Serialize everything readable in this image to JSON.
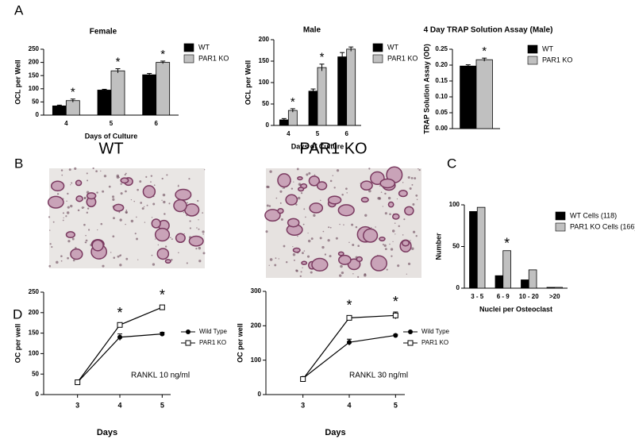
{
  "panel_labels": [
    "A",
    "B",
    "C",
    "D"
  ],
  "images": [
    {
      "title": "WT"
    },
    {
      "title": "PAR1 KO"
    }
  ],
  "chart_data": [
    {
      "type": "bar",
      "title": "Female",
      "x_label": "Days of Culture",
      "y_label": "OCL per Well",
      "categories": [
        "4",
        "5",
        "6"
      ],
      "series": [
        {
          "name": "WT",
          "color": "#000000",
          "values": [
            35,
            95,
            153
          ],
          "errors": [
            3,
            3,
            5
          ]
        },
        {
          "name": "PAR1 KO",
          "color": "#c0c0c0",
          "values": [
            55,
            168,
            200
          ],
          "errors": [
            6,
            8,
            5
          ]
        }
      ],
      "ylim": [
        0,
        250
      ],
      "yticks": [
        0,
        50,
        100,
        150,
        200,
        250
      ],
      "annotations": [
        {
          "text": "*",
          "category": "4"
        },
        {
          "text": "*",
          "category": "5"
        },
        {
          "text": "*",
          "category": "6"
        }
      ]
    },
    {
      "type": "bar",
      "title": "Male",
      "x_label": "Days of Culture",
      "y_label": "OCL per Well",
      "categories": [
        "4",
        "5",
        "6"
      ],
      "series": [
        {
          "name": "WT",
          "color": "#000000",
          "values": [
            13,
            80,
            160
          ],
          "errors": [
            3,
            5,
            10
          ]
        },
        {
          "name": "PAR1 KO",
          "color": "#c0c0c0",
          "values": [
            35,
            135,
            178
          ],
          "errors": [
            4,
            8,
            5
          ]
        }
      ],
      "ylim": [
        0,
        200
      ],
      "yticks": [
        0,
        50,
        100,
        150,
        200
      ],
      "annotations": [
        {
          "text": "*",
          "category": "4"
        },
        {
          "text": "*",
          "category": "5"
        }
      ]
    },
    {
      "type": "bar",
      "title": "4 Day  TRAP Solution Assay (Male)",
      "y_label": "TRAP Solution Assay (OD)",
      "categories": [
        null
      ],
      "series": [
        {
          "name": "WT",
          "color": "#000000",
          "values": [
            0.197
          ],
          "errors": [
            0.004
          ]
        },
        {
          "name": "PAR1 KO",
          "color": "#c0c0c0",
          "values": [
            0.217
          ],
          "errors": [
            0.005
          ]
        }
      ],
      "ylim": [
        0,
        0.25
      ],
      "yticks": [
        {
          "value": 0,
          "label": "0.00"
        },
        {
          "value": 0.05,
          "label": "0.05"
        },
        {
          "value": 0.1,
          "label": "0.10"
        },
        {
          "value": 0.15,
          "label": "0.15"
        },
        {
          "value": 0.2,
          "label": "0.20"
        },
        {
          "value": 0.25,
          "label": "0.25"
        }
      ],
      "annotations": [
        {
          "text": "*",
          "category": null
        }
      ]
    },
    {
      "type": "bar",
      "x_label": "Nuclei per Osteoclast",
      "y_label": "Number",
      "categories": [
        "3 - 5",
        "6 - 9",
        "10 - 20",
        ">20"
      ],
      "series": [
        {
          "name": "WT Cells (118)",
          "color": "#000000",
          "values": [
            92,
            15,
            10,
            1
          ]
        },
        {
          "name": "PAR1 KO Cells (166)",
          "color": "#c0c0c0",
          "values": [
            97,
            45,
            22,
            1
          ]
        }
      ],
      "ylim": [
        0,
        100
      ],
      "yticks": [
        0,
        50,
        100
      ],
      "annotations": [
        {
          "text": "*",
          "category": "6 - 9"
        }
      ]
    },
    {
      "type": "line",
      "x_label": "Days",
      "y_label": "OC per well",
      "note": "RANKL 10 ng/ml",
      "x": [
        3,
        4,
        5
      ],
      "xlim": [
        2.2,
        5.2
      ],
      "xticks": [
        3,
        4,
        5
      ],
      "series": [
        {
          "name": "Wild Type",
          "color": "#000000",
          "marker": "circle",
          "values": [
            30,
            140,
            148
          ],
          "errors": [
            1,
            8,
            4
          ]
        },
        {
          "name": "PAR1 KO",
          "color": "#000000",
          "marker": "square",
          "values": [
            30,
            170,
            213
          ],
          "errors": [
            1,
            4,
            5
          ]
        }
      ],
      "ylim": [
        0,
        250
      ],
      "yticks": [
        0,
        50,
        100,
        150,
        200,
        250
      ],
      "annotations": [
        {
          "text": "*",
          "x": 4
        },
        {
          "text": "*",
          "x": 5
        }
      ]
    },
    {
      "type": "line",
      "x_label": "Days",
      "y_label": "OC per well",
      "note": "RANKL 30 ng/ml",
      "x": [
        3,
        4,
        5
      ],
      "xlim": [
        2.2,
        5.2
      ],
      "xticks": [
        3,
        4,
        5
      ],
      "series": [
        {
          "name": "Wild Type",
          "color": "#000000",
          "marker": "circle",
          "values": [
            47,
            152,
            172
          ],
          "errors": [
            4,
            9,
            3
          ]
        },
        {
          "name": "PAR1 KO",
          "color": "#000000",
          "marker": "square",
          "values": [
            45,
            223,
            230
          ],
          "errors": [
            4,
            6,
            10
          ]
        }
      ],
      "ylim": [
        0,
        300
      ],
      "yticks": [
        0,
        100,
        200,
        300
      ],
      "annotations": [
        {
          "text": "*",
          "x": 4
        },
        {
          "text": "*",
          "x": 5
        }
      ]
    }
  ]
}
